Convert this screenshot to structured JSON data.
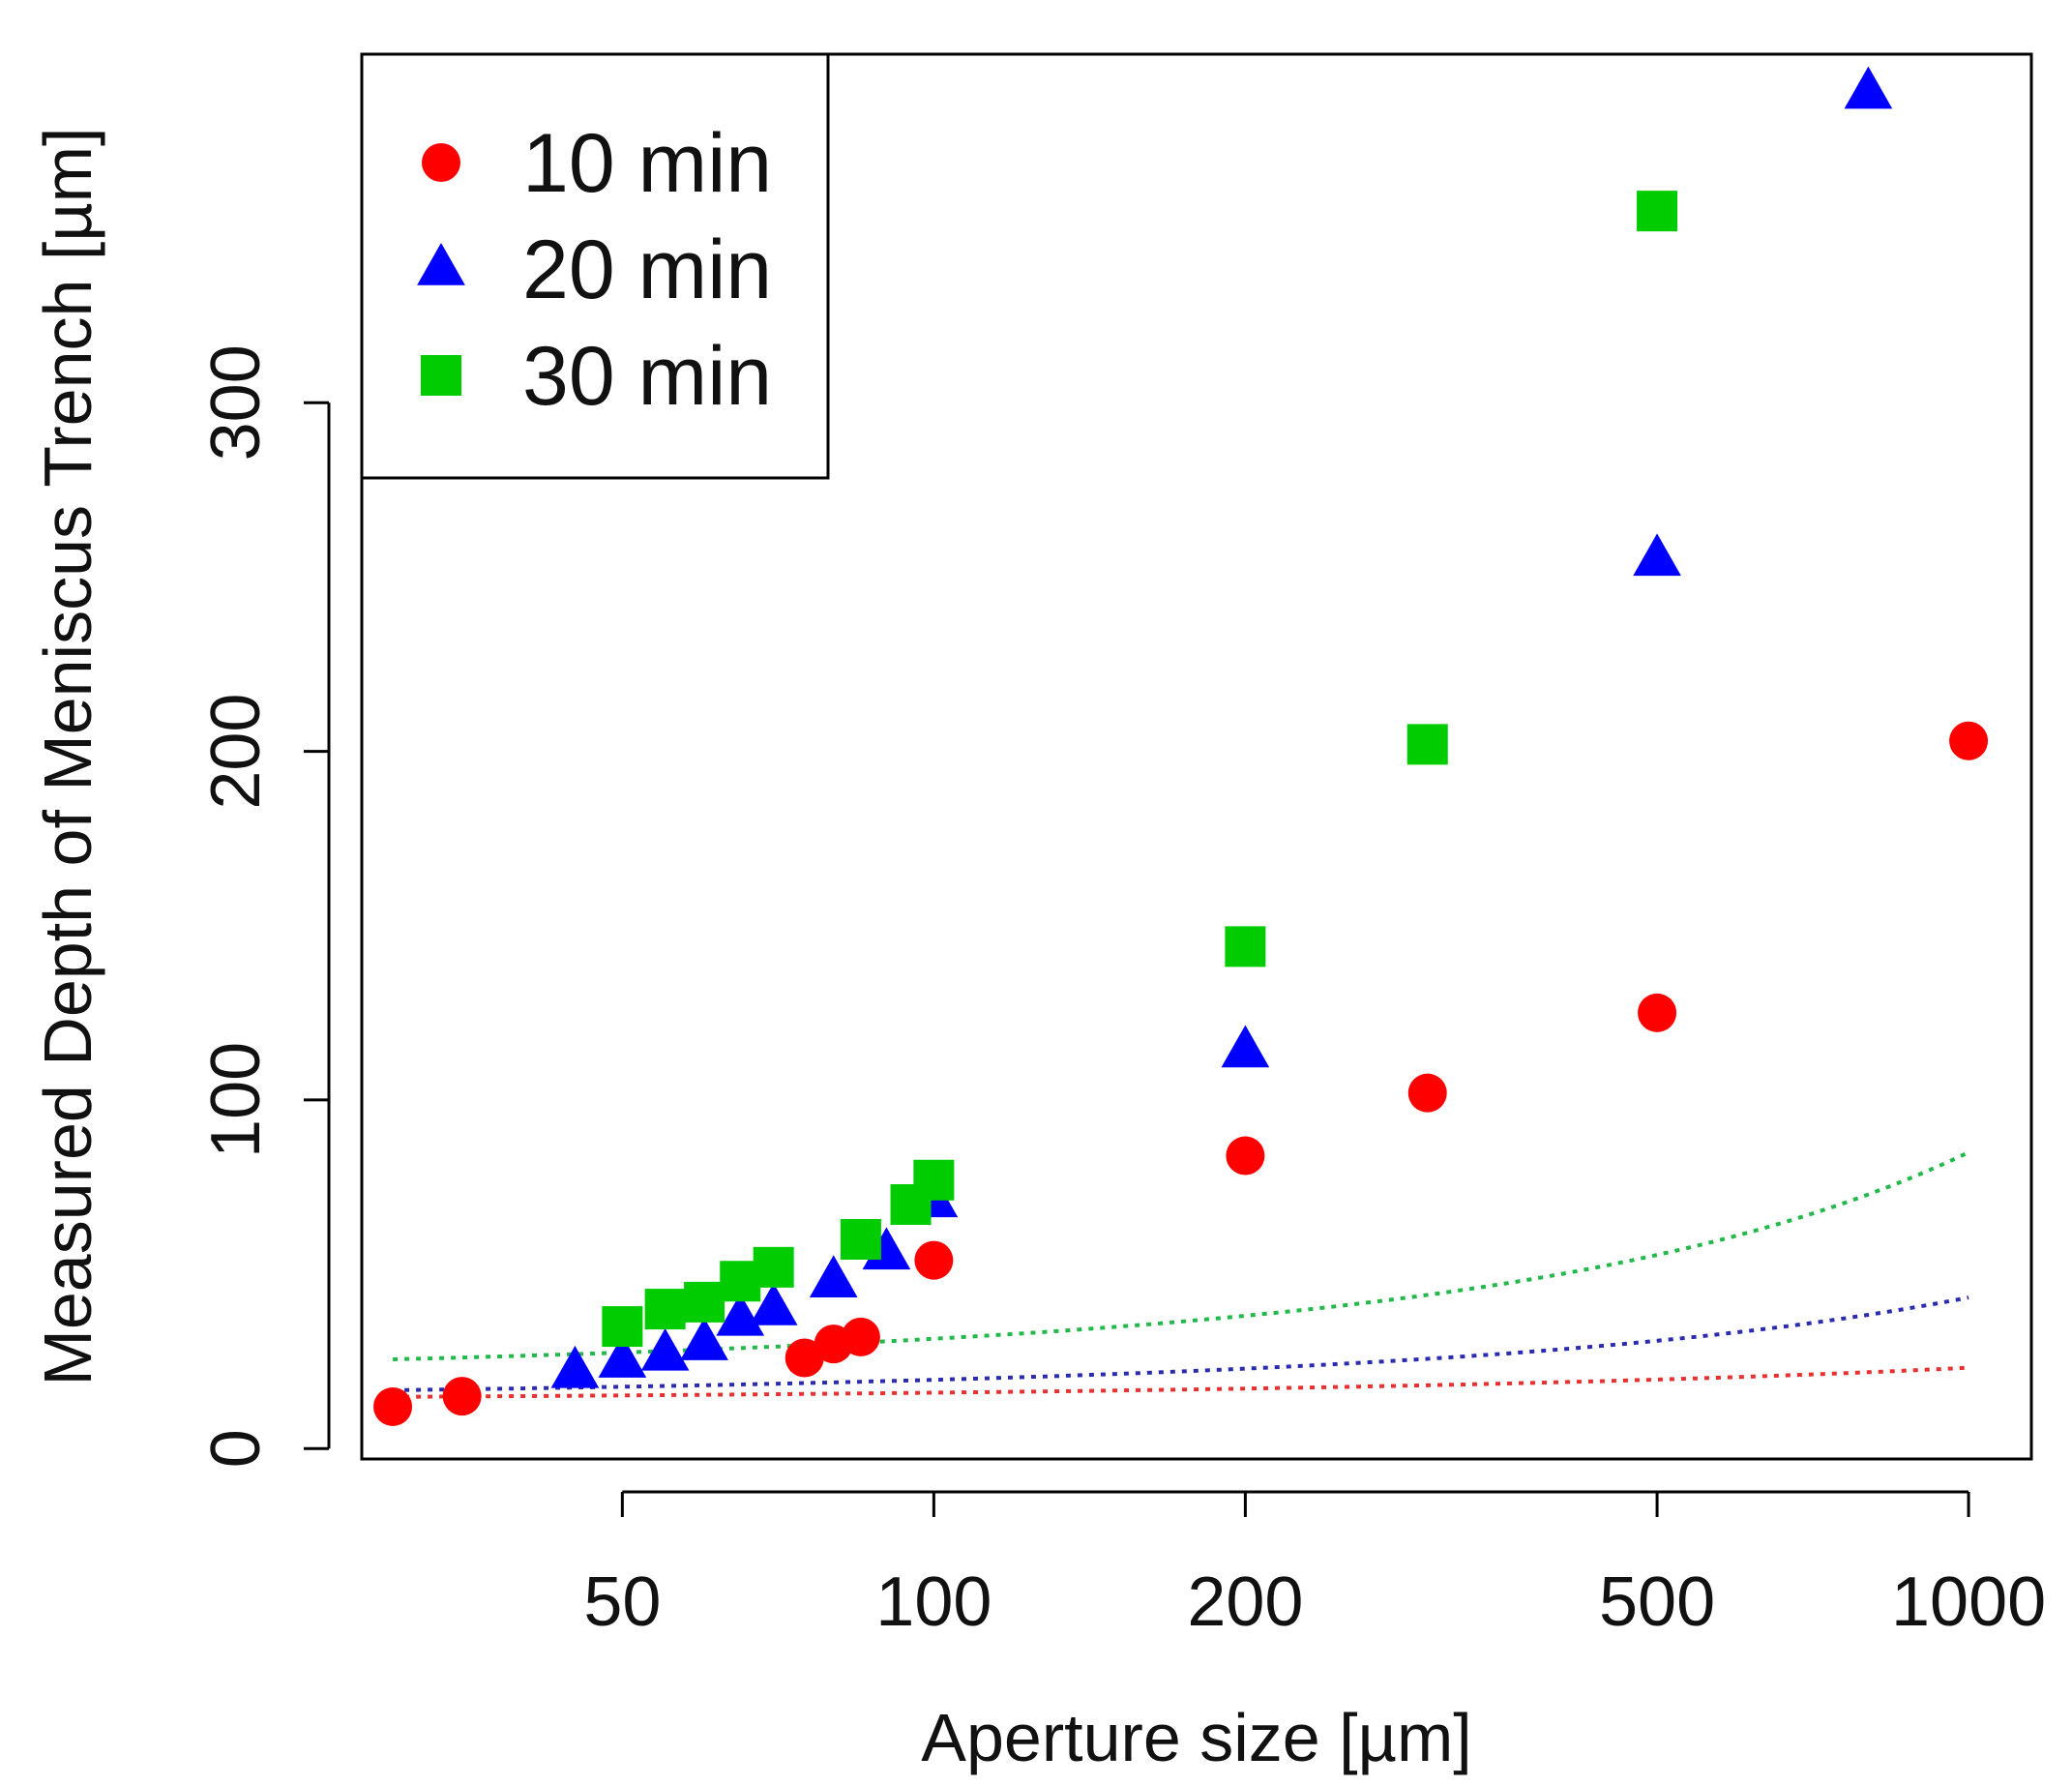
{
  "chart_data": {
    "type": "scatter",
    "title": "",
    "xlabel": "Aperture size [µm]",
    "ylabel": "Measured Depth of Meniscus Trench [µm]",
    "xscale": "log",
    "xlim": [
      28,
      1150
    ],
    "ylim": [
      -3,
      400
    ],
    "xticks": [
      50,
      100,
      200,
      500,
      1000
    ],
    "xtick_labels": [
      "50",
      "100",
      "200",
      "500",
      "1000"
    ],
    "yticks": [
      0,
      100,
      200,
      300
    ],
    "ytick_labels": [
      "0",
      "100",
      "200",
      "300"
    ],
    "legend_position": "top-left",
    "grid": false,
    "series": [
      {
        "name": "10 min",
        "marker": "circle",
        "color": "#ff0000",
        "fit_color": "#e8312f",
        "x": [
          30,
          35,
          75,
          80,
          85,
          100,
          200,
          300,
          500,
          1000
        ],
        "y": [
          12,
          15,
          26,
          30,
          32,
          54,
          84,
          102,
          125,
          203
        ],
        "fit": {
          "a": 13.5,
          "b": 0.0171
        }
      },
      {
        "name": "20 min",
        "marker": "triangle",
        "color": "#0000ff",
        "fit_color": "#2b2bb0",
        "x": [
          45,
          50,
          55,
          60,
          65,
          70,
          80,
          90,
          100,
          200,
          500,
          800
        ],
        "y": [
          22,
          25,
          27,
          30,
          37,
          40,
          48,
          56,
          71,
          114,
          255,
          389
        ],
        "fit": {
          "a": 13.7,
          "b": 0.0364
        }
      },
      {
        "name": "30 min",
        "marker": "square",
        "color": "#00cc00",
        "fit_color": "#22b84a",
        "x": [
          50,
          55,
          60,
          65,
          70,
          85,
          95,
          100,
          200,
          300,
          500
        ],
        "y": [
          35,
          40,
          42,
          48,
          52,
          60,
          70,
          77,
          144,
          202,
          355
        ],
        "fit": {
          "a": 19.9,
          "b": 0.0459
        }
      }
    ]
  }
}
